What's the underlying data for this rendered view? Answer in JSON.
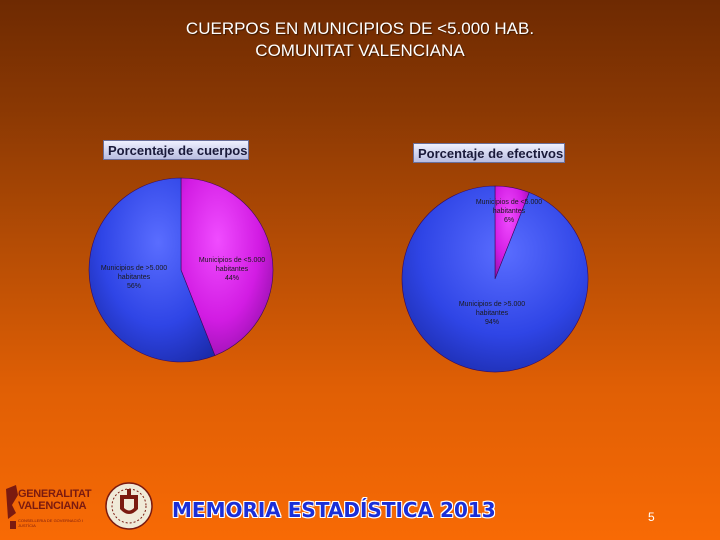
{
  "slide": {
    "title_line1": "CUERPOS EN MUNICIPIOS DE <5.000 HAB.",
    "title_line2": "COMUNITAT VALENCIANA",
    "page_number": "5",
    "footer_banner": "MEMORIA ESTADÍSTICA 2013",
    "logo": {
      "name": "GENERALITAT VALENCIANA",
      "line1": "GENERALITAT",
      "line2": "VALENCIANA",
      "subtitle": "CONSELLERIA DE GOVERNACIÓ I JUSTÍCIA"
    }
  },
  "colors": {
    "small_munis": "#d81ce8",
    "large_munis": "#2f45e6"
  },
  "chart_data": [
    {
      "type": "pie",
      "title": "Porcentaje de cuerpos",
      "series": [
        {
          "name": "Municipios de <5.000 habitantes",
          "value": 44,
          "label_lines": [
            "Municipios de <5.000",
            "habitantes",
            "44%"
          ]
        },
        {
          "name": "Municipios de >5.000 habitantes",
          "value": 56,
          "label_lines": [
            "Municipios de >5.000",
            "habitantes",
            "56%"
          ]
        }
      ]
    },
    {
      "type": "pie",
      "title": "Porcentaje de efectivos",
      "series": [
        {
          "name": "Municipios de <5.000 habitantes",
          "value": 6,
          "label_lines": [
            "Municipios de <5.000",
            "habitantes",
            "6%"
          ]
        },
        {
          "name": "Municipios de >5.000 habitantes",
          "value": 94,
          "label_lines": [
            "Municipios de >5.000",
            "habitantes",
            "94%"
          ]
        }
      ]
    }
  ]
}
